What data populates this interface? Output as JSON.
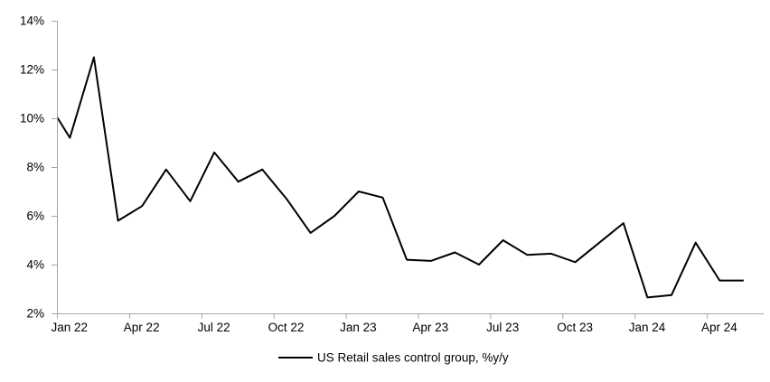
{
  "chart_data": {
    "type": "line",
    "title": "",
    "xlabel": "",
    "ylabel": "",
    "grid": false,
    "background": "#ffffff",
    "axis_color": "#a6a6a6",
    "text_color": "#000000",
    "ylim": [
      2,
      14
    ],
    "ytick_step": 2,
    "ytick_labels": [
      "2%",
      "4%",
      "6%",
      "8%",
      "10%",
      "12%",
      "14%"
    ],
    "xtick_labels": [
      "Jan 22",
      "Apr 22",
      "Jul 22",
      "Oct 22",
      "Jan 23",
      "Apr 23",
      "Jul 23",
      "Oct 23",
      "Jan 24",
      "Apr 24"
    ],
    "legend_position": "bottom-center",
    "series": [
      {
        "name": "US Retail sales control group, %y/y",
        "color": "#000000",
        "line_width": 2,
        "x": [
          "Dec 21",
          "Jan 22",
          "Feb 22",
          "Mar 22",
          "Apr 22",
          "May 22",
          "Jun 22",
          "Jul 22",
          "Aug 22",
          "Sep 22",
          "Oct 22",
          "Nov 22",
          "Dec 22",
          "Jan 23",
          "Feb 23",
          "Mar 23",
          "Apr 23",
          "May 23",
          "Jun 23",
          "Jul 23",
          "Aug 23",
          "Sep 23",
          "Oct 23",
          "Nov 23",
          "Dec 23",
          "Jan 24",
          "Feb 24",
          "Mar 24",
          "Apr 24",
          "May 24"
        ],
        "values": [
          10.8,
          9.2,
          12.5,
          5.8,
          6.4,
          7.9,
          6.6,
          8.6,
          7.4,
          7.9,
          6.7,
          5.3,
          6.0,
          7.0,
          6.75,
          4.2,
          4.15,
          4.5,
          4.0,
          5.0,
          4.4,
          4.45,
          4.1,
          4.9,
          5.7,
          2.65,
          2.75,
          4.9,
          3.35,
          3.35
        ],
        "note": "First point (Dec 21) lies left of the axis minimum; its segment is clipped at the plot edge"
      }
    ]
  }
}
